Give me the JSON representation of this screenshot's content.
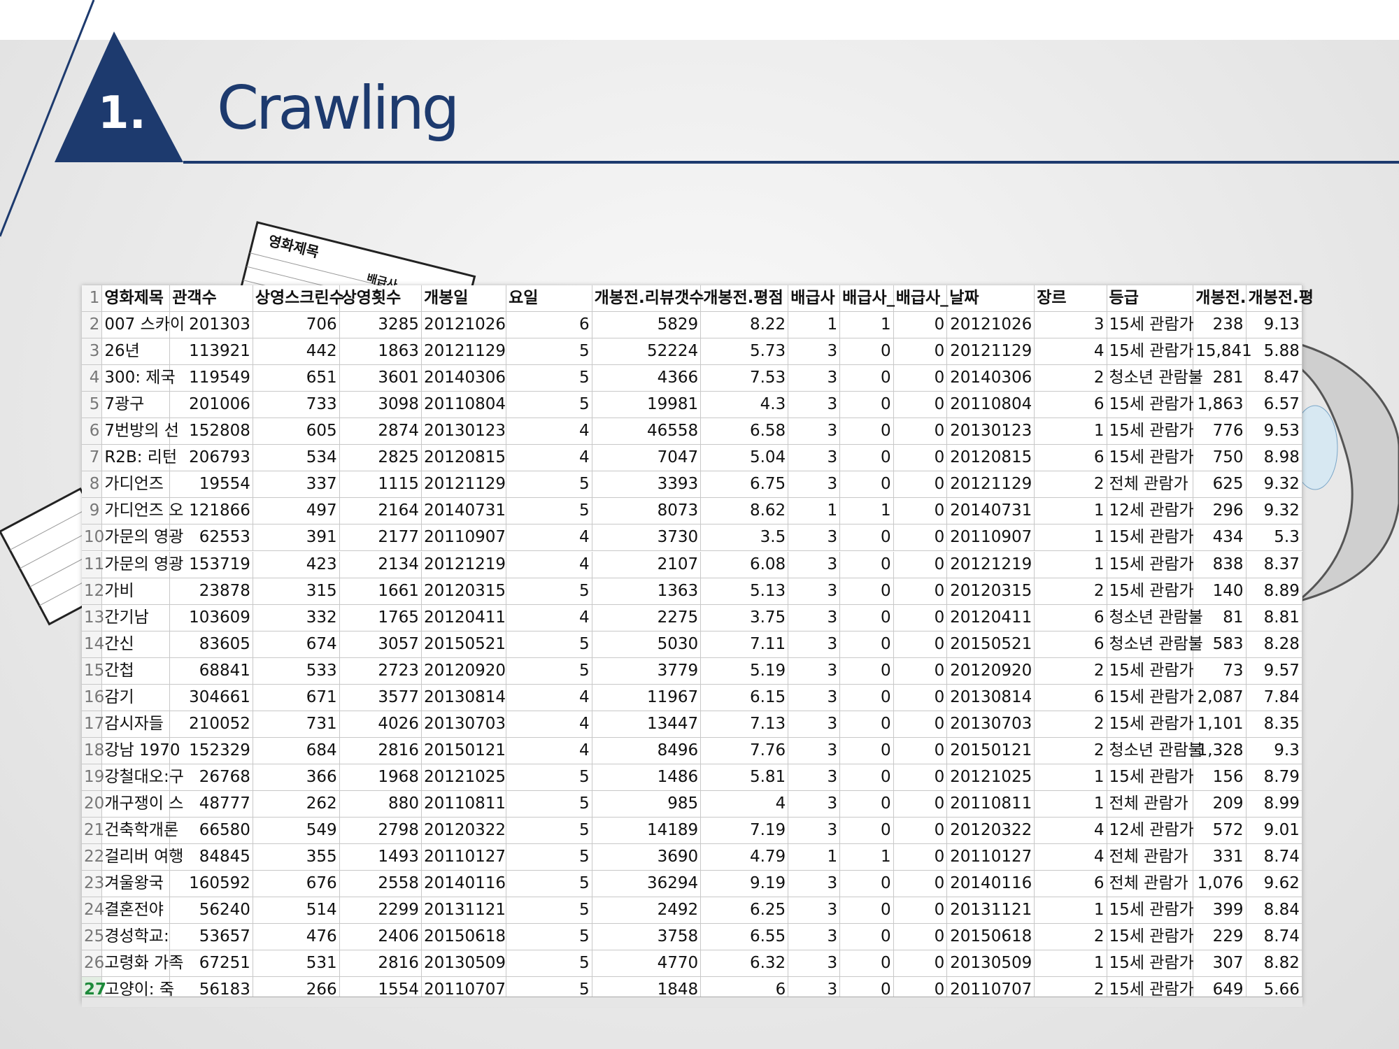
{
  "header": {
    "number": "1.",
    "title": "Crawling"
  },
  "back_sheets": {
    "labels": [
      "영화제목",
      "배급사"
    ]
  },
  "table": {
    "header": [
      "영화제목",
      "관객수",
      "상영스크린수",
      "상영횟수",
      "개봉일",
      "요일",
      "개봉전.리뷰갯수",
      "개봉전.평점",
      "배급사",
      "배급사_",
      "배급사_",
      "날짜",
      "장르",
      "등급",
      "개봉전.",
      "개봉전.평"
    ],
    "row_numbers": [
      "1",
      "2",
      "3",
      "4",
      "5",
      "6",
      "7",
      "8",
      "9",
      "10",
      "11",
      "12",
      "13",
      "14",
      "15",
      "16",
      "17",
      "18",
      "19",
      "20",
      "21",
      "22",
      "23",
      "24",
      "25",
      "26",
      "27"
    ],
    "rows": [
      [
        "007 스카이",
        "201303",
        "706",
        "3285",
        "20121026",
        "6",
        "5829",
        "8.22",
        "1",
        "1",
        "0",
        "20121026",
        "3",
        "15세 관람가",
        "238",
        "9.13"
      ],
      [
        "26년",
        "113921",
        "442",
        "1863",
        "20121129",
        "5",
        "52224",
        "5.73",
        "3",
        "0",
        "0",
        "20121129",
        "4",
        "15세 관람가",
        "15,841",
        "5.88"
      ],
      [
        "300: 제국",
        "119549",
        "651",
        "3601",
        "20140306",
        "5",
        "4366",
        "7.53",
        "3",
        "0",
        "0",
        "20140306",
        "2",
        "청소년 관람불",
        "281",
        "8.47"
      ],
      [
        "7광구",
        "201006",
        "733",
        "3098",
        "20110804",
        "5",
        "19981",
        "4.3",
        "3",
        "0",
        "0",
        "20110804",
        "6",
        "15세 관람가",
        "1,863",
        "6.57"
      ],
      [
        "7번방의 선",
        "152808",
        "605",
        "2874",
        "20130123",
        "4",
        "46558",
        "6.58",
        "3",
        "0",
        "0",
        "20130123",
        "1",
        "15세 관람가",
        "776",
        "9.53"
      ],
      [
        "R2B: 리턴",
        "206793",
        "534",
        "2825",
        "20120815",
        "4",
        "7047",
        "5.04",
        "3",
        "0",
        "0",
        "20120815",
        "6",
        "15세 관람가",
        "750",
        "8.98"
      ],
      [
        "가디언즈",
        "19554",
        "337",
        "1115",
        "20121129",
        "5",
        "3393",
        "6.75",
        "3",
        "0",
        "0",
        "20121129",
        "2",
        "전체 관람가",
        "625",
        "9.32"
      ],
      [
        "가디언즈 오",
        "121866",
        "497",
        "2164",
        "20140731",
        "5",
        "8073",
        "8.62",
        "1",
        "1",
        "0",
        "20140731",
        "1",
        "12세 관람가",
        "296",
        "9.32"
      ],
      [
        "가문의 영광",
        "62553",
        "391",
        "2177",
        "20110907",
        "4",
        "3730",
        "3.5",
        "3",
        "0",
        "0",
        "20110907",
        "1",
        "15세 관람가",
        "434",
        "5.3"
      ],
      [
        "가문의 영광",
        "153719",
        "423",
        "2134",
        "20121219",
        "4",
        "2107",
        "6.08",
        "3",
        "0",
        "0",
        "20121219",
        "1",
        "15세 관람가",
        "838",
        "8.37"
      ],
      [
        "가비",
        "23878",
        "315",
        "1661",
        "20120315",
        "5",
        "1363",
        "5.13",
        "3",
        "0",
        "0",
        "20120315",
        "2",
        "15세 관람가",
        "140",
        "8.89"
      ],
      [
        "간기남",
        "103609",
        "332",
        "1765",
        "20120411",
        "4",
        "2275",
        "3.75",
        "3",
        "0",
        "0",
        "20120411",
        "6",
        "청소년 관람불",
        "81",
        "8.81"
      ],
      [
        "간신",
        "83605",
        "674",
        "3057",
        "20150521",
        "5",
        "5030",
        "7.11",
        "3",
        "0",
        "0",
        "20150521",
        "6",
        "청소년 관람불",
        "583",
        "8.28"
      ],
      [
        "간첩",
        "68841",
        "533",
        "2723",
        "20120920",
        "5",
        "3779",
        "5.19",
        "3",
        "0",
        "0",
        "20120920",
        "2",
        "15세 관람가",
        "73",
        "9.57"
      ],
      [
        "감기",
        "304661",
        "671",
        "3577",
        "20130814",
        "4",
        "11967",
        "6.15",
        "3",
        "0",
        "0",
        "20130814",
        "6",
        "15세 관람가",
        "2,087",
        "7.84"
      ],
      [
        "감시자들",
        "210052",
        "731",
        "4026",
        "20130703",
        "4",
        "13447",
        "7.13",
        "3",
        "0",
        "0",
        "20130703",
        "2",
        "15세 관람가",
        "1,101",
        "8.35"
      ],
      [
        "강남 1970",
        "152329",
        "684",
        "2816",
        "20150121",
        "4",
        "8496",
        "7.76",
        "3",
        "0",
        "0",
        "20150121",
        "2",
        "청소년 관람불",
        "1,328",
        "9.3"
      ],
      [
        "강철대오:구",
        "26768",
        "366",
        "1968",
        "20121025",
        "5",
        "1486",
        "5.81",
        "3",
        "0",
        "0",
        "20121025",
        "1",
        "15세 관람가",
        "156",
        "8.79"
      ],
      [
        "개구쟁이 스",
        "48777",
        "262",
        "880",
        "20110811",
        "5",
        "985",
        "4",
        "3",
        "0",
        "0",
        "20110811",
        "1",
        "전체 관람가",
        "209",
        "8.99"
      ],
      [
        "건축학개론",
        "66580",
        "549",
        "2798",
        "20120322",
        "5",
        "14189",
        "7.19",
        "3",
        "0",
        "0",
        "20120322",
        "4",
        "12세 관람가",
        "572",
        "9.01"
      ],
      [
        "걸리버 여행",
        "84845",
        "355",
        "1493",
        "20110127",
        "5",
        "3690",
        "4.79",
        "1",
        "1",
        "0",
        "20110127",
        "4",
        "전체 관람가",
        "331",
        "8.74"
      ],
      [
        "겨울왕국",
        "160592",
        "676",
        "2558",
        "20140116",
        "5",
        "36294",
        "9.19",
        "3",
        "0",
        "0",
        "20140116",
        "6",
        "전체 관람가",
        "1,076",
        "9.62"
      ],
      [
        "결혼전야",
        "56240",
        "514",
        "2299",
        "20131121",
        "5",
        "2492",
        "6.25",
        "3",
        "0",
        "0",
        "20131121",
        "1",
        "15세 관람가",
        "399",
        "8.84"
      ],
      [
        "경성학교:",
        "53657",
        "476",
        "2406",
        "20150618",
        "5",
        "3758",
        "6.55",
        "3",
        "0",
        "0",
        "20150618",
        "2",
        "15세 관람가",
        "229",
        "8.74"
      ],
      [
        "고령화 가족",
        "67251",
        "531",
        "2816",
        "20130509",
        "5",
        "4770",
        "6.32",
        "3",
        "0",
        "0",
        "20130509",
        "1",
        "15세 관람가",
        "307",
        "8.82"
      ],
      [
        "고양이: 죽",
        "56183",
        "266",
        "1554",
        "20110707",
        "5",
        "1848",
        "6",
        "3",
        "0",
        "0",
        "20110707",
        "2",
        "15세 관람가",
        "649",
        "5.66"
      ]
    ]
  }
}
